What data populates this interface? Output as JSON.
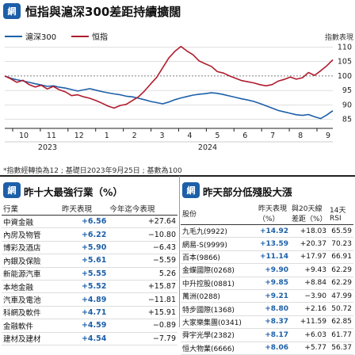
{
  "header": {
    "badge": "網",
    "title": "恒指與滬深300差距持續擴闊",
    "legend": [
      {
        "label": "滬深300",
        "color": "#1c5fa8"
      },
      {
        "label": "恒指",
        "color": "#b01c2e"
      }
    ]
  },
  "chart_data": {
    "type": "line",
    "ylabel": "指數表現",
    "yticks": [
      85,
      90,
      95,
      100,
      105,
      110
    ],
    "ylim": [
      83,
      112
    ],
    "xticks": [
      "10",
      "11",
      "12",
      "1",
      "2",
      "3",
      "4",
      "5",
      "6",
      "7",
      "8",
      "9"
    ],
    "years": [
      "2023",
      "2024"
    ],
    "series": [
      {
        "name": "滬深300",
        "color": "#1c5fa8",
        "values": [
          100,
          99.2,
          98.7,
          98.3,
          97.8,
          97.3,
          96.9,
          96.4,
          96.6,
          96.1,
          95.8,
          95.3,
          94.8,
          95.2,
          95.6,
          95.1,
          94.6,
          94.2,
          93.8,
          93.5,
          93.0,
          92.8,
          92.3,
          91.8,
          91.2,
          90.8,
          90.4,
          91.0,
          91.8,
          92.4,
          92.9,
          93.4,
          93.7,
          93.9,
          94.2,
          94.0,
          93.6,
          93.1,
          92.6,
          92.1,
          91.7,
          91.2,
          90.5,
          89.7,
          88.9,
          88.1,
          87.6,
          87.1,
          86.6,
          86.4,
          86.7,
          85.9,
          85.3,
          86.5,
          88.0
        ]
      },
      {
        "name": "恒指",
        "color": "#b01c2e",
        "values": [
          100,
          99,
          97.8,
          98.5,
          97,
          96.2,
          96.8,
          95.5,
          96.4,
          95.2,
          94.5,
          93.2,
          93.5,
          92.8,
          92.3,
          91.5,
          90.6,
          89.6,
          88.9,
          89.8,
          90.2,
          91.5,
          92.8,
          94.8,
          97.2,
          99.5,
          102.8,
          106.2,
          108.5,
          110.2,
          108.6,
          107.3,
          105.2,
          104.2,
          103.3,
          101.5,
          101.0,
          100.0,
          99.2,
          98.4,
          98.0,
          97.6,
          97.0,
          96.6,
          97.0,
          98.2,
          98.8,
          99.6,
          98.9,
          99.4,
          101.2,
          100.2,
          101.8,
          103.5,
          105.6
        ]
      }
    ]
  },
  "note": "*指數經轉換為12 ; 基礎日2023年9月25日 ; 基數為100",
  "left_panel": {
    "badge": "網",
    "title": "昨十大最強行業（%）",
    "headers": [
      "行業",
      "昨天表現",
      "今年迄今表現"
    ],
    "rows": [
      [
        "中資金融",
        "+6.56",
        "+27.64"
      ],
      [
        "內房及物管",
        "+6.22",
        "−10.80"
      ],
      [
        "博彩及酒店",
        "+5.90",
        "−6.43"
      ],
      [
        "內銀及保險",
        "+5.61",
        "−5.59"
      ],
      [
        "新能源汽車",
        "+5.55",
        "5.26"
      ],
      [
        "本地金融",
        "+5.52",
        "+15.87"
      ],
      [
        "汽車及電池",
        "+4.89",
        "−11.81"
      ],
      [
        "科網及軟件",
        "+4.71",
        "+15.91"
      ],
      [
        "金融軟件",
        "+4.59",
        "−0.89"
      ],
      [
        "建材及建材",
        "+4.54",
        "−7.79"
      ]
    ]
  },
  "right_panel": {
    "badge": "網",
    "title": "昨天部分低殘股大漲",
    "headers": [
      "股份",
      "昨天表現（%）",
      "與20天線差距（%）",
      "14天RSI"
    ],
    "rows": [
      [
        "九毛九(9922)",
        "+14.92",
        "+18.03",
        "65.59"
      ],
      [
        "網易-S(9999)",
        "+13.59",
        "+20.37",
        "70.23"
      ],
      [
        "百本(9866)",
        "+11.14",
        "+17.97",
        "66.91"
      ],
      [
        "金蝶國際(0268)",
        "+9.90",
        "+9.43",
        "62.29"
      ],
      [
        "中升控股(0881)",
        "+9.85",
        "+8.84",
        "62.29"
      ],
      [
        "萬洲(0288)",
        "+9.21",
        "−3.90",
        "47.99"
      ],
      [
        "特步國際(1368)",
        "+8.80",
        "+2.16",
        "50.72"
      ],
      [
        "大家樂集團(0341)",
        "+8.37",
        "+11.59",
        "62.85"
      ],
      [
        "舜宇光學(2382)",
        "+8.17",
        "+6.03",
        "61.77"
      ],
      [
        "恒大物業(6666)",
        "+8.06",
        "+5.77",
        "56.37"
      ]
    ]
  }
}
